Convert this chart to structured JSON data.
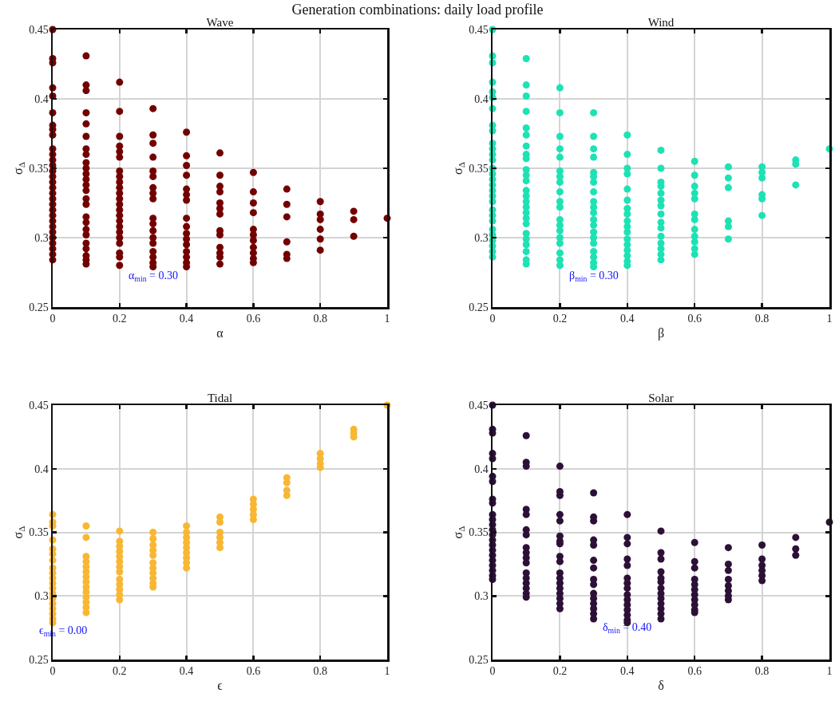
{
  "chart_data": [
    {
      "type": "scatter",
      "title": "Wave",
      "xlabel": "α",
      "ylabel": "σ$_{Δ}$",
      "xlim": [
        0,
        1
      ],
      "ylim": [
        0.25,
        0.45
      ],
      "xticks": [
        0,
        0.2,
        0.4,
        0.6,
        0.8,
        1
      ],
      "yticks": [
        0.25,
        0.3,
        0.35,
        0.4,
        0.45
      ],
      "grid": true,
      "marker": "circle",
      "annotations": [
        "Generation combinations: daily load profile",
        "α$_{min}$ = 0.30"
      ],
      "series": [
        {
          "color": "#730000",
          "x": [
            0,
            0,
            0,
            0,
            0,
            0,
            0,
            0,
            0,
            0,
            0,
            0,
            0,
            0,
            0,
            0,
            0,
            0,
            0,
            0,
            0,
            0,
            0,
            0,
            0,
            0,
            0,
            0,
            0,
            0,
            0.1,
            0.1,
            0.1,
            0.1,
            0.1,
            0.1,
            0.1,
            0.1,
            0.1,
            0.1,
            0.1,
            0.1,
            0.1,
            0.1,
            0.1,
            0.1,
            0.1,
            0.1,
            0.1,
            0.1,
            0.1,
            0.1,
            0.1,
            0.1,
            0.1,
            0.2,
            0.2,
            0.2,
            0.2,
            0.2,
            0.2,
            0.2,
            0.2,
            0.2,
            0.2,
            0.2,
            0.2,
            0.2,
            0.2,
            0.2,
            0.2,
            0.2,
            0.2,
            0.2,
            0.2,
            0.2,
            0.2,
            0.2,
            0.3,
            0.3,
            0.3,
            0.3,
            0.3,
            0.3,
            0.3,
            0.3,
            0.3,
            0.3,
            0.3,
            0.3,
            0.3,
            0.3,
            0.3,
            0.3,
            0.3,
            0.3,
            0.4,
            0.4,
            0.4,
            0.4,
            0.4,
            0.4,
            0.4,
            0.4,
            0.4,
            0.4,
            0.4,
            0.4,
            0.4,
            0.4,
            0.4,
            0.4,
            0.5,
            0.5,
            0.5,
            0.5,
            0.5,
            0.5,
            0.5,
            0.5,
            0.5,
            0.5,
            0.5,
            0.5,
            0.5,
            0.6,
            0.6,
            0.6,
            0.6,
            0.6,
            0.6,
            0.6,
            0.6,
            0.6,
            0.6,
            0.6,
            0.7,
            0.7,
            0.7,
            0.7,
            0.7,
            0.7,
            0.8,
            0.8,
            0.8,
            0.8,
            0.8,
            0.8,
            0.9,
            0.9,
            0.9,
            1
          ],
          "values": [
            0.45,
            0.429,
            0.426,
            0.408,
            0.402,
            0.39,
            0.381,
            0.378,
            0.374,
            0.364,
            0.36,
            0.356,
            0.352,
            0.348,
            0.344,
            0.34,
            0.336,
            0.332,
            0.328,
            0.324,
            0.32,
            0.316,
            0.312,
            0.308,
            0.304,
            0.3,
            0.296,
            0.292,
            0.288,
            0.284,
            0.431,
            0.41,
            0.406,
            0.39,
            0.382,
            0.373,
            0.364,
            0.36,
            0.354,
            0.35,
            0.346,
            0.342,
            0.338,
            0.334,
            0.328,
            0.324,
            0.315,
            0.311,
            0.306,
            0.302,
            0.296,
            0.292,
            0.287,
            0.284,
            0.281,
            0.412,
            0.391,
            0.373,
            0.366,
            0.362,
            0.358,
            0.348,
            0.344,
            0.34,
            0.336,
            0.332,
            0.328,
            0.324,
            0.32,
            0.316,
            0.312,
            0.308,
            0.304,
            0.3,
            0.296,
            0.289,
            0.286,
            0.28,
            0.393,
            0.374,
            0.368,
            0.358,
            0.348,
            0.344,
            0.336,
            0.332,
            0.328,
            0.314,
            0.31,
            0.305,
            0.3,
            0.296,
            0.29,
            0.286,
            0.282,
            0.279,
            0.376,
            0.359,
            0.352,
            0.345,
            0.335,
            0.331,
            0.327,
            0.314,
            0.308,
            0.303,
            0.299,
            0.295,
            0.29,
            0.286,
            0.282,
            0.279,
            0.361,
            0.345,
            0.337,
            0.333,
            0.325,
            0.321,
            0.317,
            0.305,
            0.302,
            0.293,
            0.289,
            0.286,
            0.281,
            0.347,
            0.333,
            0.325,
            0.318,
            0.306,
            0.302,
            0.298,
            0.293,
            0.289,
            0.285,
            0.282,
            0.335,
            0.324,
            0.315,
            0.297,
            0.288,
            0.285,
            0.326,
            0.317,
            0.313,
            0.306,
            0.299,
            0.291,
            0.319,
            0.313,
            0.301,
            0.314
          ]
        }
      ]
    },
    {
      "type": "scatter",
      "title": "Wind",
      "xlabel": "β",
      "ylabel": "σ$_{Δ}$",
      "xlim": [
        0,
        1
      ],
      "ylim": [
        0.25,
        0.45
      ],
      "xticks": [
        0,
        0.2,
        0.4,
        0.6,
        0.8,
        1
      ],
      "yticks": [
        0.25,
        0.3,
        0.35,
        0.4,
        0.45
      ],
      "grid": true,
      "marker": "circle",
      "annotations": [
        "β$_{min}$ = 0.30"
      ],
      "series": [
        {
          "color": "#1de2b4",
          "x": [
            0,
            0,
            0,
            0,
            0,
            0,
            0,
            0,
            0,
            0,
            0,
            0,
            0,
            0,
            0,
            0,
            0,
            0,
            0,
            0,
            0,
            0,
            0,
            0,
            0,
            0,
            0,
            0,
            0,
            0.1,
            0.1,
            0.1,
            0.1,
            0.1,
            0.1,
            0.1,
            0.1,
            0.1,
            0.1,
            0.1,
            0.1,
            0.1,
            0.1,
            0.1,
            0.1,
            0.1,
            0.1,
            0.1,
            0.1,
            0.1,
            0.1,
            0.1,
            0.1,
            0.1,
            0.2,
            0.2,
            0.2,
            0.2,
            0.2,
            0.2,
            0.2,
            0.2,
            0.2,
            0.2,
            0.2,
            0.2,
            0.2,
            0.2,
            0.2,
            0.2,
            0.2,
            0.2,
            0.2,
            0.3,
            0.3,
            0.3,
            0.3,
            0.3,
            0.3,
            0.3,
            0.3,
            0.3,
            0.3,
            0.3,
            0.3,
            0.3,
            0.3,
            0.3,
            0.3,
            0.3,
            0.3,
            0.3,
            0.3,
            0.4,
            0.4,
            0.4,
            0.4,
            0.4,
            0.4,
            0.4,
            0.4,
            0.4,
            0.4,
            0.4,
            0.4,
            0.4,
            0.4,
            0.4,
            0.4,
            0.4,
            0.5,
            0.5,
            0.5,
            0.5,
            0.5,
            0.5,
            0.5,
            0.5,
            0.5,
            0.5,
            0.5,
            0.5,
            0.5,
            0.5,
            0.5,
            0.6,
            0.6,
            0.6,
            0.6,
            0.6,
            0.6,
            0.6,
            0.6,
            0.6,
            0.6,
            0.6,
            0.6,
            0.7,
            0.7,
            0.7,
            0.7,
            0.7,
            0.7,
            0.8,
            0.8,
            0.8,
            0.8,
            0.8,
            0.8,
            0.9,
            0.9,
            0.9,
            1
          ],
          "values": [
            0.45,
            0.431,
            0.426,
            0.412,
            0.405,
            0.401,
            0.393,
            0.381,
            0.377,
            0.368,
            0.364,
            0.36,
            0.356,
            0.35,
            0.346,
            0.342,
            0.338,
            0.334,
            0.33,
            0.326,
            0.32,
            0.316,
            0.312,
            0.306,
            0.302,
            0.298,
            0.294,
            0.29,
            0.286,
            0.429,
            0.41,
            0.402,
            0.391,
            0.379,
            0.374,
            0.366,
            0.36,
            0.357,
            0.349,
            0.345,
            0.341,
            0.334,
            0.33,
            0.326,
            0.322,
            0.318,
            0.314,
            0.31,
            0.303,
            0.299,
            0.295,
            0.29,
            0.284,
            0.281,
            0.408,
            0.39,
            0.373,
            0.364,
            0.358,
            0.348,
            0.344,
            0.34,
            0.333,
            0.326,
            0.322,
            0.313,
            0.309,
            0.305,
            0.3,
            0.296,
            0.289,
            0.284,
            0.28,
            0.39,
            0.373,
            0.364,
            0.358,
            0.347,
            0.344,
            0.34,
            0.333,
            0.326,
            0.322,
            0.318,
            0.313,
            0.309,
            0.304,
            0.3,
            0.296,
            0.29,
            0.286,
            0.282,
            0.279,
            0.374,
            0.36,
            0.35,
            0.346,
            0.335,
            0.327,
            0.321,
            0.317,
            0.312,
            0.308,
            0.304,
            0.299,
            0.295,
            0.291,
            0.287,
            0.283,
            0.28,
            0.363,
            0.35,
            0.34,
            0.337,
            0.332,
            0.327,
            0.323,
            0.317,
            0.311,
            0.307,
            0.301,
            0.296,
            0.292,
            0.288,
            0.284,
            0.355,
            0.345,
            0.337,
            0.332,
            0.328,
            0.317,
            0.313,
            0.306,
            0.301,
            0.297,
            0.292,
            0.288,
            0.351,
            0.343,
            0.336,
            0.312,
            0.308,
            0.299,
            0.351,
            0.347,
            0.343,
            0.331,
            0.328,
            0.316,
            0.356,
            0.353,
            0.338,
            0.364
          ]
        }
      ]
    },
    {
      "type": "scatter",
      "title": "Tidal",
      "xlabel": "ϵ",
      "ylabel": "σ$_{Δ}$",
      "xlim": [
        0,
        1
      ],
      "ylim": [
        0.25,
        0.45
      ],
      "xticks": [
        0,
        0.2,
        0.4,
        0.6,
        0.8,
        1
      ],
      "yticks": [
        0.25,
        0.3,
        0.35,
        0.4,
        0.45
      ],
      "grid": true,
      "marker": "circle",
      "annotations": [
        "ϵ$_{min}$ = 0.00"
      ],
      "series": [
        {
          "color": "#f8b733",
          "x": [
            0,
            0,
            0,
            0,
            0,
            0,
            0,
            0,
            0,
            0,
            0,
            0,
            0,
            0,
            0,
            0,
            0,
            0,
            0,
            0.1,
            0.1,
            0.1,
            0.1,
            0.1,
            0.1,
            0.1,
            0.1,
            0.1,
            0.1,
            0.1,
            0.1,
            0.1,
            0.1,
            0.2,
            0.2,
            0.2,
            0.2,
            0.2,
            0.2,
            0.2,
            0.2,
            0.2,
            0.2,
            0.2,
            0.2,
            0.2,
            0.3,
            0.3,
            0.3,
            0.3,
            0.3,
            0.3,
            0.3,
            0.3,
            0.3,
            0.3,
            0.3,
            0.4,
            0.4,
            0.4,
            0.4,
            0.4,
            0.4,
            0.4,
            0.4,
            0.4,
            0.5,
            0.5,
            0.5,
            0.5,
            0.5,
            0.5,
            0.6,
            0.6,
            0.6,
            0.6,
            0.6,
            0.7,
            0.7,
            0.7,
            0.7,
            0.8,
            0.8,
            0.8,
            0.8,
            0.9,
            0.9,
            0.9,
            1
          ],
          "values": [
            0.364,
            0.358,
            0.355,
            0.344,
            0.337,
            0.333,
            0.328,
            0.322,
            0.318,
            0.314,
            0.31,
            0.306,
            0.302,
            0.298,
            0.294,
            0.29,
            0.286,
            0.282,
            0.279,
            0.355,
            0.346,
            0.331,
            0.327,
            0.323,
            0.319,
            0.315,
            0.311,
            0.307,
            0.303,
            0.299,
            0.295,
            0.291,
            0.287,
            0.351,
            0.343,
            0.339,
            0.335,
            0.331,
            0.327,
            0.323,
            0.319,
            0.313,
            0.309,
            0.305,
            0.301,
            0.297,
            0.35,
            0.345,
            0.34,
            0.336,
            0.332,
            0.326,
            0.322,
            0.318,
            0.314,
            0.31,
            0.307,
            0.355,
            0.35,
            0.346,
            0.342,
            0.338,
            0.334,
            0.33,
            0.326,
            0.322,
            0.362,
            0.358,
            0.35,
            0.346,
            0.342,
            0.338,
            0.376,
            0.372,
            0.368,
            0.364,
            0.36,
            0.393,
            0.389,
            0.383,
            0.379,
            0.412,
            0.408,
            0.404,
            0.401,
            0.431,
            0.428,
            0.425,
            0.45
          ]
        }
      ]
    },
    {
      "type": "scatter",
      "title": "Solar",
      "xlabel": "δ",
      "ylabel": "σ$_{Δ}$",
      "xlim": [
        0,
        1
      ],
      "ylim": [
        0.25,
        0.45
      ],
      "xticks": [
        0,
        0.2,
        0.4,
        0.6,
        0.8,
        1
      ],
      "yticks": [
        0.25,
        0.3,
        0.35,
        0.4,
        0.45
      ],
      "grid": true,
      "marker": "circle",
      "annotations": [
        "δ$_{min}$ = 0.40"
      ],
      "series": [
        {
          "color": "#2d1038",
          "x": [
            0,
            0,
            0,
            0,
            0,
            0,
            0,
            0,
            0,
            0,
            0,
            0,
            0,
            0,
            0,
            0,
            0,
            0,
            0,
            0,
            0,
            0,
            0,
            0.1,
            0.1,
            0.1,
            0.1,
            0.1,
            0.1,
            0.1,
            0.1,
            0.1,
            0.1,
            0.1,
            0.1,
            0.1,
            0.1,
            0.1,
            0.1,
            0.1,
            0.2,
            0.2,
            0.2,
            0.2,
            0.2,
            0.2,
            0.2,
            0.2,
            0.2,
            0.2,
            0.2,
            0.2,
            0.2,
            0.2,
            0.2,
            0.2,
            0.2,
            0.2,
            0.3,
            0.3,
            0.3,
            0.3,
            0.3,
            0.3,
            0.3,
            0.3,
            0.3,
            0.3,
            0.3,
            0.3,
            0.3,
            0.3,
            0.3,
            0.4,
            0.4,
            0.4,
            0.4,
            0.4,
            0.4,
            0.4,
            0.4,
            0.4,
            0.4,
            0.4,
            0.4,
            0.4,
            0.4,
            0.4,
            0.5,
            0.5,
            0.5,
            0.5,
            0.5,
            0.5,
            0.5,
            0.5,
            0.5,
            0.5,
            0.5,
            0.5,
            0.5,
            0.6,
            0.6,
            0.6,
            0.6,
            0.6,
            0.6,
            0.6,
            0.6,
            0.6,
            0.6,
            0.6,
            0.7,
            0.7,
            0.7,
            0.7,
            0.7,
            0.7,
            0.7,
            0.7,
            0.8,
            0.8,
            0.8,
            0.8,
            0.8,
            0.8,
            0.9,
            0.9,
            0.9,
            1
          ],
          "values": [
            0.45,
            0.431,
            0.428,
            0.412,
            0.408,
            0.394,
            0.39,
            0.376,
            0.373,
            0.364,
            0.36,
            0.356,
            0.352,
            0.348,
            0.344,
            0.34,
            0.336,
            0.332,
            0.328,
            0.324,
            0.32,
            0.316,
            0.313,
            0.426,
            0.405,
            0.402,
            0.368,
            0.364,
            0.352,
            0.348,
            0.338,
            0.334,
            0.33,
            0.326,
            0.318,
            0.314,
            0.31,
            0.306,
            0.302,
            0.299,
            0.402,
            0.382,
            0.379,
            0.364,
            0.359,
            0.347,
            0.343,
            0.341,
            0.331,
            0.327,
            0.318,
            0.314,
            0.31,
            0.306,
            0.302,
            0.298,
            0.294,
            0.29,
            0.381,
            0.362,
            0.359,
            0.344,
            0.34,
            0.328,
            0.322,
            0.313,
            0.309,
            0.302,
            0.298,
            0.294,
            0.29,
            0.286,
            0.282,
            0.364,
            0.346,
            0.341,
            0.329,
            0.324,
            0.314,
            0.31,
            0.306,
            0.301,
            0.297,
            0.293,
            0.289,
            0.285,
            0.281,
            0.279,
            0.351,
            0.334,
            0.329,
            0.319,
            0.314,
            0.311,
            0.306,
            0.302,
            0.298,
            0.294,
            0.29,
            0.286,
            0.282,
            0.342,
            0.327,
            0.322,
            0.313,
            0.309,
            0.305,
            0.301,
            0.297,
            0.293,
            0.289,
            0.287,
            0.338,
            0.325,
            0.32,
            0.313,
            0.308,
            0.304,
            0.3,
            0.297,
            0.34,
            0.329,
            0.324,
            0.32,
            0.316,
            0.312,
            0.346,
            0.337,
            0.332,
            0.358
          ]
        }
      ]
    }
  ]
}
